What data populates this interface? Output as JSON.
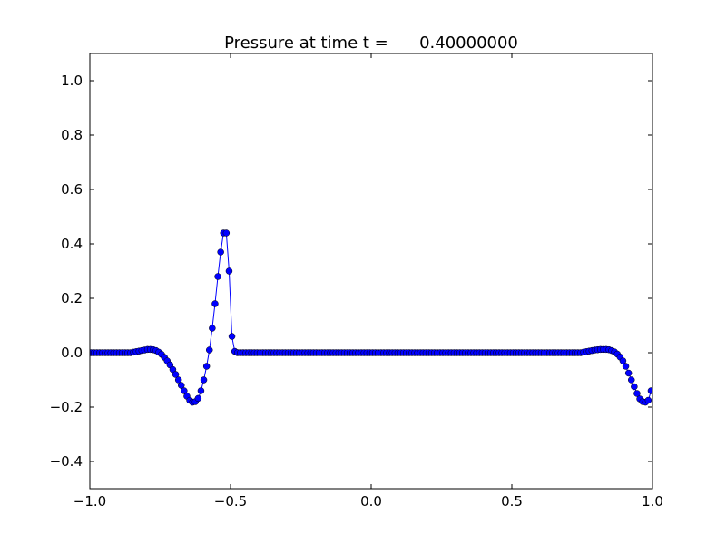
{
  "chart_data": {
    "type": "line",
    "title": "Pressure at time t =      0.40000000",
    "x": [
      -0.995,
      -0.985,
      -0.975,
      -0.965,
      -0.955,
      -0.945,
      -0.935,
      -0.925,
      -0.915,
      -0.905,
      -0.895,
      -0.885,
      -0.875,
      -0.865,
      -0.855,
      -0.845,
      -0.835,
      -0.825,
      -0.815,
      -0.805,
      -0.795,
      -0.785,
      -0.775,
      -0.765,
      -0.755,
      -0.745,
      -0.735,
      -0.725,
      -0.715,
      -0.705,
      -0.695,
      -0.685,
      -0.675,
      -0.665,
      -0.655,
      -0.645,
      -0.635,
      -0.625,
      -0.615,
      -0.605,
      -0.595,
      -0.585,
      -0.575,
      -0.565,
      -0.555,
      -0.545,
      -0.535,
      -0.525,
      -0.515,
      -0.505,
      -0.495,
      -0.485,
      -0.475,
      -0.465,
      -0.455,
      -0.445,
      -0.435,
      -0.425,
      -0.415,
      -0.405,
      -0.395,
      -0.385,
      -0.375,
      -0.365,
      -0.355,
      -0.345,
      -0.335,
      -0.325,
      -0.315,
      -0.305,
      -0.295,
      -0.285,
      -0.275,
      -0.265,
      -0.255,
      -0.245,
      -0.235,
      -0.225,
      -0.215,
      -0.205,
      -0.195,
      -0.185,
      -0.175,
      -0.165,
      -0.155,
      -0.145,
      -0.135,
      -0.125,
      -0.115,
      -0.105,
      -0.095,
      -0.085,
      -0.075,
      -0.065,
      -0.055,
      -0.045,
      -0.035,
      -0.025,
      -0.015,
      -0.005,
      0.005,
      0.015,
      0.025,
      0.035,
      0.045,
      0.055,
      0.065,
      0.075,
      0.085,
      0.095,
      0.105,
      0.115,
      0.125,
      0.135,
      0.145,
      0.155,
      0.165,
      0.175,
      0.185,
      0.195,
      0.205,
      0.215,
      0.225,
      0.235,
      0.245,
      0.255,
      0.265,
      0.275,
      0.285,
      0.295,
      0.305,
      0.315,
      0.325,
      0.335,
      0.345,
      0.355,
      0.365,
      0.375,
      0.385,
      0.395,
      0.405,
      0.415,
      0.425,
      0.435,
      0.445,
      0.455,
      0.465,
      0.475,
      0.485,
      0.495,
      0.505,
      0.515,
      0.525,
      0.535,
      0.545,
      0.555,
      0.565,
      0.575,
      0.585,
      0.595,
      0.605,
      0.615,
      0.625,
      0.635,
      0.645,
      0.655,
      0.665,
      0.675,
      0.685,
      0.695,
      0.705,
      0.715,
      0.725,
      0.735,
      0.745,
      0.755,
      0.765,
      0.775,
      0.785,
      0.795,
      0.805,
      0.815,
      0.825,
      0.835,
      0.845,
      0.855,
      0.865,
      0.875,
      0.885,
      0.895,
      0.905,
      0.915,
      0.925,
      0.935,
      0.945,
      0.955,
      0.965,
      0.975,
      0.985,
      0.995
    ],
    "values": [
      0,
      0,
      0,
      0,
      0,
      0,
      0,
      0,
      0,
      0,
      0,
      0,
      0,
      0,
      0,
      0.002,
      0.004,
      0.006,
      0.008,
      0.01,
      0.012,
      0.012,
      0.011,
      0.008,
      0.002,
      -0.006,
      -0.017,
      -0.03,
      -0.045,
      -0.062,
      -0.08,
      -0.1,
      -0.12,
      -0.14,
      -0.16,
      -0.175,
      -0.182,
      -0.18,
      -0.168,
      -0.14,
      -0.1,
      -0.05,
      0.01,
      0.09,
      0.18,
      0.28,
      0.37,
      0.44,
      0.44,
      0.3,
      0.06,
      0.005,
      0,
      0,
      0,
      0,
      0,
      0,
      0,
      0,
      0,
      0,
      0,
      0,
      0,
      0,
      0,
      0,
      0,
      0,
      0,
      0,
      0,
      0,
      0,
      0,
      0,
      0,
      0,
      0,
      0,
      0,
      0,
      0,
      0,
      0,
      0,
      0,
      0,
      0,
      0,
      0,
      0,
      0,
      0,
      0,
      0,
      0,
      0,
      0,
      0,
      0,
      0,
      0,
      0,
      0,
      0,
      0,
      0,
      0,
      0,
      0,
      0,
      0,
      0,
      0,
      0,
      0,
      0,
      0,
      0,
      0,
      0,
      0,
      0,
      0,
      0,
      0,
      0,
      0,
      0,
      0,
      0,
      0,
      0,
      0,
      0,
      0,
      0,
      0,
      0,
      0,
      0,
      0,
      0,
      0,
      0,
      0,
      0,
      0,
      0,
      0,
      0,
      0,
      0,
      0,
      0,
      0,
      0,
      0,
      0,
      0,
      0,
      0,
      0,
      0,
      0,
      0,
      0,
      0,
      0,
      0,
      0,
      0,
      0,
      0.002,
      0.004,
      0.006,
      0.008,
      0.01,
      0.011,
      0.012,
      0.012,
      0.012,
      0.011,
      0.008,
      0.003,
      -0.005,
      -0.016,
      -0.03,
      -0.05,
      -0.075,
      -0.1,
      -0.125,
      -0.15,
      -0.17,
      -0.18,
      -0.182,
      -0.175,
      -0.14
    ],
    "color": "#0000ff",
    "xlim": [
      -1.0,
      1.0
    ],
    "xticks": [
      {
        "value": -1.0,
        "label": "−1.0"
      },
      {
        "value": -0.5,
        "label": "−0.5"
      },
      {
        "value": 0.0,
        "label": "0.0"
      },
      {
        "value": 0.5,
        "label": "0.5"
      },
      {
        "value": 1.0,
        "label": "1.0"
      }
    ],
    "ylim": [
      -0.5,
      1.1
    ],
    "yticks": [
      {
        "value": -0.4,
        "label": "−0.4"
      },
      {
        "value": -0.2,
        "label": "−0.2"
      },
      {
        "value": 0.0,
        "label": "0.0"
      },
      {
        "value": 0.2,
        "label": "0.2"
      },
      {
        "value": 0.4,
        "label": "0.4"
      },
      {
        "value": 0.6,
        "label": "0.6"
      },
      {
        "value": 0.8,
        "label": "0.8"
      },
      {
        "value": 1.0,
        "label": "1.0"
      }
    ]
  }
}
